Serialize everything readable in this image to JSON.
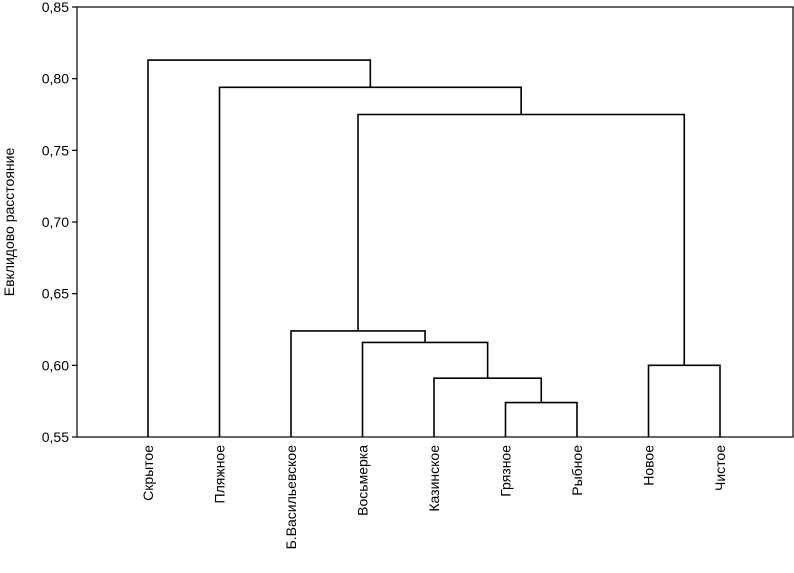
{
  "chart_data": {
    "type": "dendrogram",
    "ylabel": "Евклидово расстояние",
    "ylim": [
      0.55,
      0.85
    ],
    "yticks": [
      "0,55",
      "0,60",
      "0,65",
      "0,70",
      "0,75",
      "0,80",
      "0,85"
    ],
    "ytick_values": [
      0.55,
      0.6,
      0.65,
      0.7,
      0.75,
      0.8,
      0.85
    ],
    "leaves": [
      "Скрытое",
      "Пляжное",
      "Б.Васильевское",
      "Восьмерка",
      "Казинское",
      "Грязное",
      "Рыбное",
      "Новое",
      "Чистое"
    ],
    "merges": [
      {
        "a": "Грязное",
        "b": "Рыбное",
        "height": 0.574
      },
      {
        "a": "Казинское",
        "b": "Грязное+Рыбное",
        "height": 0.591
      },
      {
        "a": "Новое",
        "b": "Чистое",
        "height": 0.6
      },
      {
        "a": "Восьмерка",
        "b": "Казинское+Грязное+Рыбное",
        "height": 0.616
      },
      {
        "a": "Б.Васильевское",
        "b": "Восьмерка+Казинское+Грязное+Рыбное",
        "height": 0.624
      },
      {
        "a": "Б.Васильевское+Восьмерка+Казинское+Грязное+Рыбное",
        "b": "Новое+Чистое",
        "height": 0.775
      },
      {
        "a": "Пляжное",
        "b": "Б.Васильевское+…+Чистое",
        "height": 0.794
      },
      {
        "a": "Скрытое",
        "b": "Пляжное+…+Чистое",
        "height": 0.813
      }
    ]
  }
}
